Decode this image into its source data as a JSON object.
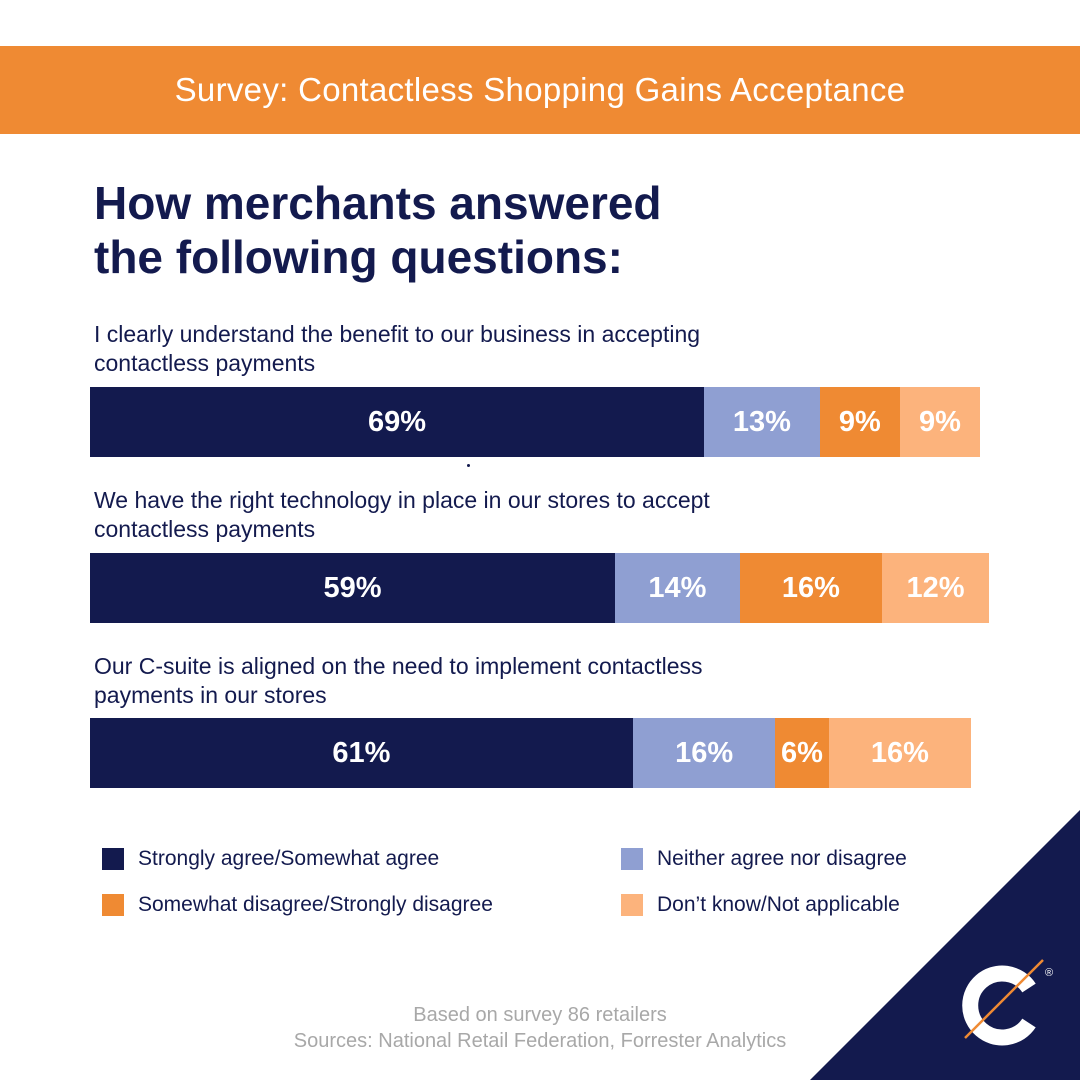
{
  "banner": {
    "title": "Survey: Contactless Shopping Gains Acceptance"
  },
  "heading": {
    "line1": "How merchants answered",
    "line2": "the following questions:"
  },
  "colors": {
    "navy": "#131a4e",
    "orange": "#ef8a33",
    "lavender": "#8f9fd2",
    "peach": "#fcb37c",
    "footnote_gray": "#a8a8a8"
  },
  "legend": {
    "agree": "Strongly agree/Somewhat agree",
    "neutral": "Neither agree nor disagree",
    "disagree": "Somewhat disagree/Strongly disagree",
    "unknown": "Don’t know/Not applicable"
  },
  "chart_data": {
    "type": "bar",
    "stacked": true,
    "orientation": "horizontal",
    "unit": "%",
    "categories": [
      "I clearly understand the benefit to our business in accepting contactless payments",
      "We have the right technology in place in our stores to accept contactless payments",
      "Our C-suite is aligned on the need to implement contactless payments in our stores"
    ],
    "category_lines": [
      [
        "I clearly understand the benefit to our business in accepting",
        "contactless payments"
      ],
      [
        "We have the right technology in place in our stores to accept",
        "contactless payments"
      ],
      [
        "Our C-suite is aligned on the need to implement contactless",
        "payments in our stores"
      ]
    ],
    "series": [
      {
        "name": "Strongly agree/Somewhat agree",
        "color": "#131a4e",
        "values": [
          69,
          59,
          61
        ],
        "labels": [
          "69%",
          "59%",
          "61%"
        ]
      },
      {
        "name": "Neither agree nor disagree",
        "color": "#8f9fd2",
        "values": [
          13,
          14,
          16
        ],
        "labels": [
          "13%",
          "14%",
          "16%"
        ]
      },
      {
        "name": "Somewhat disagree/Strongly disagree",
        "color": "#ef8a33",
        "values": [
          9,
          16,
          6
        ],
        "labels": [
          "9%",
          "16%",
          "6%"
        ]
      },
      {
        "name": "Don’t know/Not applicable",
        "color": "#fcb37c",
        "values": [
          9,
          12,
          16
        ],
        "labels": [
          "9%",
          "12%",
          "16%"
        ]
      }
    ],
    "legend_position": "bottom",
    "grid": false
  },
  "footnote": {
    "line1": "Based on survey 86 retailers",
    "line2": "Sources: National Retail Federation, Forrester Analytics"
  },
  "logo": {
    "icon": "c-logo-icon",
    "mark": "®"
  }
}
